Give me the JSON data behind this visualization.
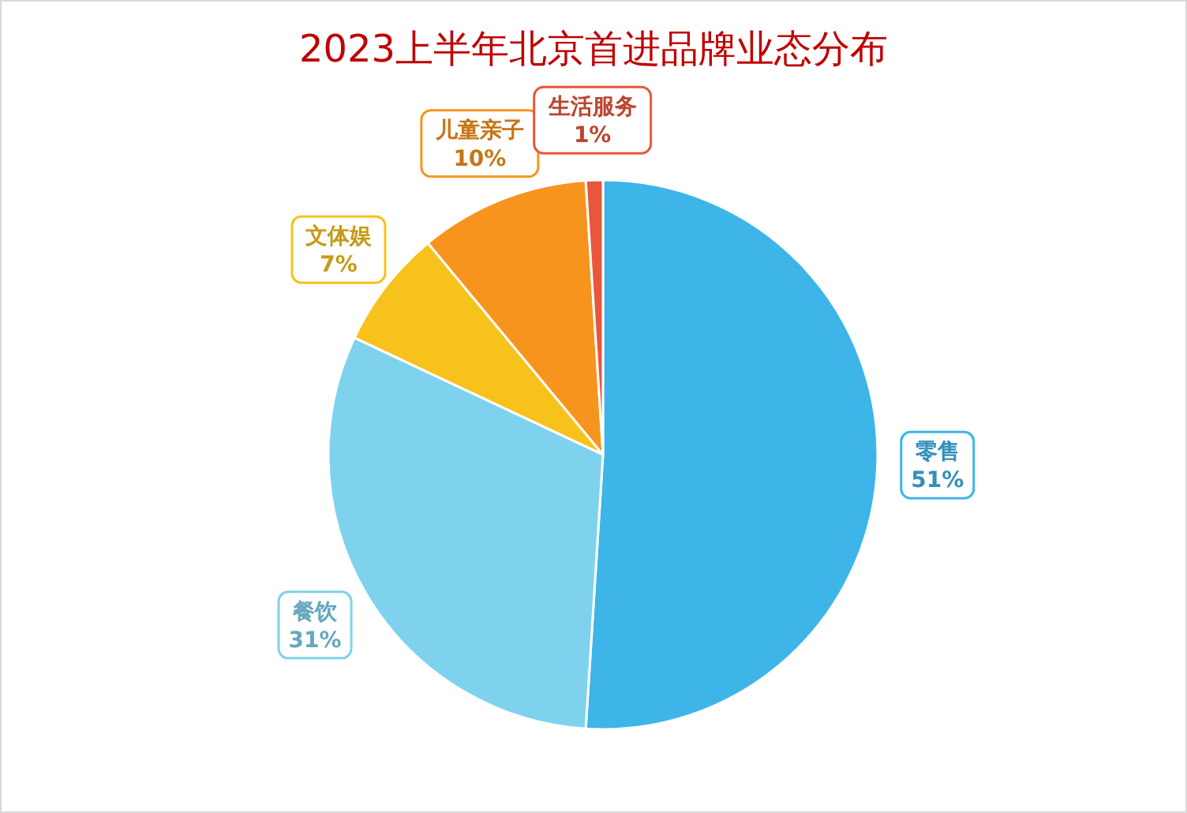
{
  "chart_data": {
    "type": "pie",
    "title": "2023上半年北京首进品牌业态分布",
    "categories": [
      "零售",
      "餐饮",
      "文体娱",
      "儿童亲子",
      "生活服务"
    ],
    "values": [
      51,
      31,
      7,
      10,
      1
    ],
    "value_labels": [
      "51%",
      "31%",
      "7%",
      "10%",
      "1%"
    ],
    "colors": [
      "#3db5e8",
      "#7fd2ee",
      "#f7c21c",
      "#f7941d",
      "#e8573c"
    ]
  }
}
